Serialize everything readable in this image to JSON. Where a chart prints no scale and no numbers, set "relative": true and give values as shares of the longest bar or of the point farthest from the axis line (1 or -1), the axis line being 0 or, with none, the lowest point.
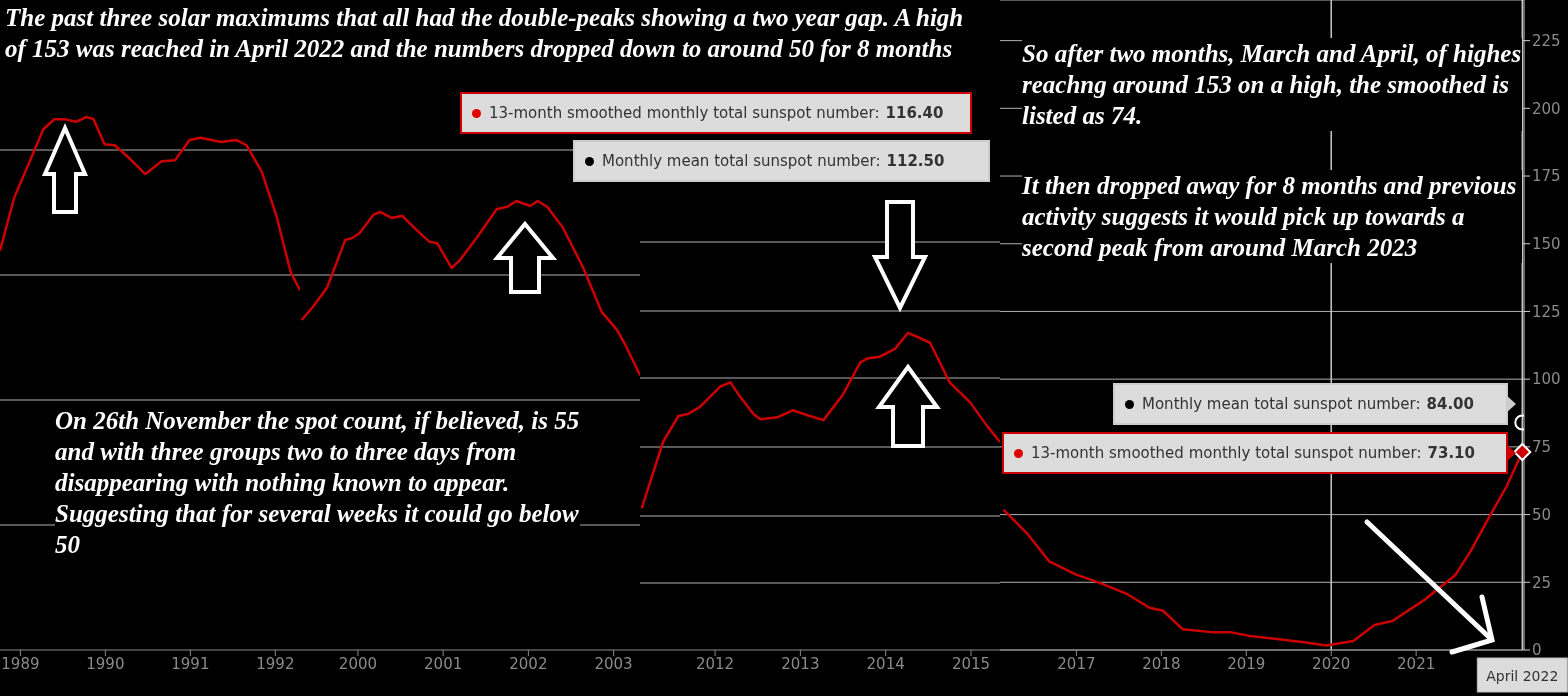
{
  "chart_data": [
    {
      "type": "line",
      "relative": true,
      "title": "The past three solar maximums that all had the double-peaks showing a two year gap. A high of 153 was reached in April 2022 and the numbers dropped down to around 50 for 8 months",
      "annotations": [
        "On 26th November the spot count, if believed, is 55 and with three groups two to three days from disappearing with nothing known to appear. Suggesting that for several weeks it could go below 50"
      ],
      "xlim": [
        1988.76,
        1992.29
      ],
      "xticks": [
        1989,
        1990,
        1991,
        1992
      ],
      "grid": "y",
      "series": [
        {
          "color": "#cc0000",
          "x": [
            1988.76,
            1988.93,
            1989.11,
            1989.27,
            1989.4,
            1989.52,
            1989.65,
            1989.78,
            1989.86,
            1989.99,
            1990.11,
            1990.28,
            1990.47,
            1990.66,
            1990.82,
            1990.99,
            1991.12,
            1991.36,
            1991.54,
            1991.66,
            1991.84,
            1992.01,
            1992.18,
            1992.29
          ],
          "values": [
            0.749,
            0.85,
            0.917,
            0.977,
            0.996,
            0.996,
            0.991,
            1,
            0.996,
            0.949,
            0.947,
            0.923,
            0.893,
            0.917,
            0.919,
            0.957,
            0.961,
            0.953,
            0.957,
            0.947,
            0.897,
            0.816,
            0.709,
            0.675
          ]
        }
      ]
    },
    {
      "type": "line",
      "relative": true,
      "xlim": [
        1999.32,
        2003.31
      ],
      "xticks": [
        2000,
        2001,
        2002,
        2003
      ],
      "grid": "y",
      "series": [
        {
          "color": "#cc0000",
          "x": [
            1999.34,
            1999.47,
            1999.64,
            1999.85,
            1999.94,
            2000.02,
            2000.18,
            2000.26,
            2000.4,
            2000.52,
            2000.69,
            2000.84,
            2000.93,
            2001.1,
            2001.2,
            2001.4,
            2001.63,
            2001.75,
            2001.86,
            2002.02,
            2002.11,
            2002.22,
            2002.4,
            2002.64,
            2002.86,
            2003.04,
            2003.15,
            2003.31
          ],
          "values": [
            0.735,
            0.764,
            0.808,
            0.913,
            0.918,
            0.929,
            0.969,
            0.976,
            0.962,
            0.967,
            0.935,
            0.909,
            0.906,
            0.851,
            0.869,
            0.92,
            0.982,
            0.987,
            1,
            0.989,
            1,
            0.987,
            0.942,
            0.853,
            0.753,
            0.713,
            0.675,
            0.612
          ]
        }
      ]
    },
    {
      "type": "line",
      "relative": true,
      "annotations": [
        "13-month smoothed monthly total sunspot number: 116.40",
        "Monthly mean total sunspot number: 112.50"
      ],
      "xlim": [
        2011.12,
        2015.34
      ],
      "xticks": [
        2012,
        2013,
        2014,
        2015
      ],
      "grid": "y",
      "series": [
        {
          "color": "#cc0000",
          "x": [
            2011.14,
            2011.39,
            2011.57,
            2011.68,
            2011.82,
            2012.06,
            2012.18,
            2012.29,
            2012.45,
            2012.53,
            2012.73,
            2012.91,
            2013.11,
            2013.27,
            2013.5,
            2013.7,
            2013.78,
            2013.93,
            2014.11,
            2014.26,
            2014.4,
            2014.52,
            2014.75,
            2014.99,
            2015.19,
            2015.34
          ],
          "values": [
            0.447,
            0.656,
            0.738,
            0.744,
            0.766,
            0.831,
            0.844,
            0.8,
            0.744,
            0.728,
            0.734,
            0.756,
            0.738,
            0.725,
            0.806,
            0.906,
            0.919,
            0.925,
            0.95,
            1,
            0.984,
            0.969,
            0.844,
            0.781,
            0.706,
            0.656
          ]
        }
      ]
    },
    {
      "type": "line",
      "annotations": [
        "So after two months, March and April, of highes reachng around 153 on a high, the smoothed is listed as 74.",
        "It then dropped away for 8 months and previous activity suggests it would pick up towards a second peak from around March 2023",
        "Monthly mean total sunspot number: 84.00",
        "13-month smoothed monthly total sunspot number: 73.10"
      ],
      "xlim": [
        2016.1,
        2022.27
      ],
      "xticks": [
        2017,
        2018,
        2019,
        2020,
        2021
      ],
      "ylim": [
        0,
        240
      ],
      "yticks": [
        0,
        25,
        50,
        75,
        100,
        125,
        150,
        175,
        200,
        225
      ],
      "grid": "y",
      "ref_lines": [
        {
          "axis": "x",
          "value": 2020
        },
        {
          "axis": "x",
          "value": 2022.25,
          "label": "April 2022"
        }
      ],
      "series": [
        {
          "color": "#cc0000",
          "x": [
            2016.14,
            2016.42,
            2016.68,
            2016.99,
            2017.29,
            2017.6,
            2017.86,
            2018.02,
            2018.25,
            2018.59,
            2018.81,
            2019.02,
            2019.46,
            2019.68,
            2019.94,
            2020.26,
            2020.51,
            2020.72,
            2021.11,
            2021.46,
            2021.64,
            2021.85,
            2022.07,
            2022.25
          ],
          "values": [
            51.8,
            43,
            32.7,
            27.9,
            24.6,
            20.6,
            15.6,
            14.5,
            7.7,
            6.6,
            6.6,
            5.3,
            3.7,
            2.9,
            1.7,
            3.3,
            9.2,
            10.7,
            18.8,
            27.6,
            36.4,
            48.5,
            60.7,
            73.1
          ]
        },
        {
          "type": "scatter",
          "marker": "circle",
          "color": "#ffffff",
          "x": [
            2022.25
          ],
          "values": [
            84
          ]
        }
      ]
    }
  ]
}
